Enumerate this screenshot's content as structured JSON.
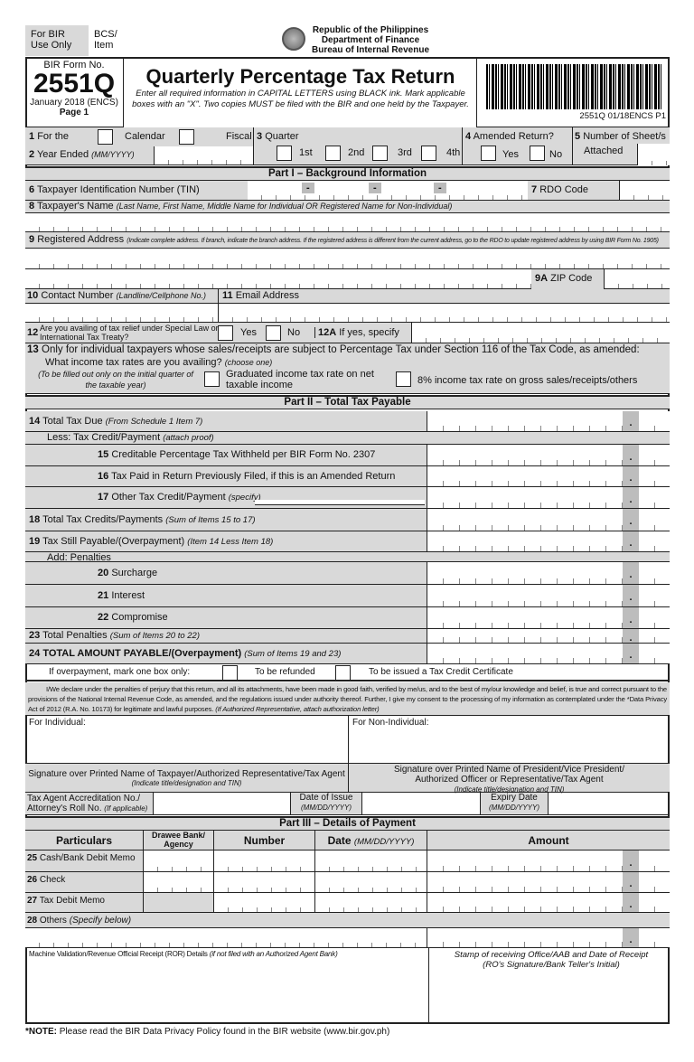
{
  "header": {
    "bir_use": "For BIR Use Only",
    "bcs": "BCS/ Item",
    "agency1": "Republic of the Philippines",
    "agency2": "Department of Finance",
    "agency3": "Bureau of Internal Revenue"
  },
  "form": {
    "form_no_label": "BIR Form No.",
    "form_no": "2551Q",
    "edition": "January 2018 (ENCS)",
    "page": "Page 1",
    "title": "Quarterly Percentage Tax Return",
    "instructions": "Enter all required information in CAPITAL LETTERS using BLACK ink. Mark applicable boxes with an \"X\".  Two copies MUST be filed with the BIR and one held by the Taxpayer.",
    "barcode_code": "2551Q 01/18ENCS P1"
  },
  "items": {
    "i1": "For the",
    "calendar": "Calendar",
    "fiscal": "Fiscal",
    "i2": "Year Ended",
    "i2_hint": "(MM/YYYY)",
    "i3": "Quarter",
    "q": [
      "1st",
      "2nd",
      "3rd",
      "4th"
    ],
    "i4": "Amended Return?",
    "yes": "Yes",
    "no": "No",
    "i5": "Number of Sheet/s",
    "attached": "Attached"
  },
  "part1": {
    "title": "Part I – Background Information",
    "i6": "Taxpayer Identification Number (TIN)",
    "i7": "RDO Code",
    "i8": "Taxpayer's Name",
    "i8_hint": "(Last Name, First Name, Middle Name for Individual OR Registered Name for Non-Individual)",
    "i9": "Registered Address",
    "i9_hint": "(Indicate complete address. If branch, indicate the branch address. If the registered address is different from the current address, go to the RDO to update registered address by using BIR Form No. 1905)",
    "i9a": "ZIP Code",
    "i10": "Contact Number",
    "i10_hint": "(Landline/Cellphone No.)",
    "i11": "Email Address",
    "i12": "Are you availing of tax relief under Special Law or International Tax Treaty?",
    "yes": "Yes",
    "no": "No",
    "i12a": "If yes, specify",
    "i13": "Only for individual taxpayers whose sales/receipts are subject to Percentage Tax under Section 116 of the Tax Code, as amended:",
    "i13_q": "What income tax rates are you availing?",
    "i13_choose": "(choose one)",
    "i13_note": "(To be filled out only on the initial quarter of the taxable year)",
    "i13_opt1": "Graduated income tax rate on net taxable income",
    "i13_opt2": "8% income tax rate on gross sales/receipts/others"
  },
  "part2": {
    "title": "Part II – Total Tax Payable",
    "rows": [
      {
        "n": "14",
        "label": "Total Tax Due",
        "hint": "(From Schedule 1 Item 7)"
      },
      {
        "n": "",
        "label": "Less: Tax Credit/Payment",
        "hint": "(attach proof)"
      },
      {
        "n": "15",
        "label": "Creditable Percentage Tax Withheld per BIR Form No. 2307",
        "hint": ""
      },
      {
        "n": "16",
        "label": "Tax Paid in Return Previously Filed, if this is an Amended Return",
        "hint": ""
      },
      {
        "n": "17",
        "label": "Other Tax Credit/Payment",
        "hint": "(specify)"
      },
      {
        "n": "18",
        "label": "Total Tax Credits/Payments",
        "hint": "(Sum of Items 15 to 17)"
      },
      {
        "n": "19",
        "label": "Tax Still Payable/(Overpayment)",
        "hint": "(Item 14 Less Item 18)"
      },
      {
        "n": "",
        "label": "Add: Penalties",
        "hint": ""
      },
      {
        "n": "20",
        "label": "Surcharge",
        "hint": ""
      },
      {
        "n": "21",
        "label": "Interest",
        "hint": ""
      },
      {
        "n": "22",
        "label": "Compromise",
        "hint": ""
      },
      {
        "n": "23",
        "label": "Total Penalties",
        "hint": "(Sum of Items 20 to 22)"
      },
      {
        "n": "24",
        "label": "TOTAL AMOUNT PAYABLE/(Overpayment)",
        "hint": "(Sum of Items 19 and 23)"
      }
    ],
    "overpay": "If overpayment, mark one box only:",
    "refund": "To be refunded",
    "tcc": "To be issued a Tax Credit Certificate"
  },
  "declaration": {
    "text": "I/We declare under the penalties of perjury that this return, and all its attachments, have been made in good faith, verified by me/us, and to the best of my/our knowledge and belief, is true and correct pursuant to the provisions of the National Internal Revenue Code, as amended, and the regulations issued under authority thereof. Further, I give my consent to the processing of my information as contemplated under the *Data Privacy Act of 2012 (R.A. No. 10173) for legitimate and lawful purposes.",
    "note": "(If Authorized Representative, attach authorization letter)",
    "individual": "For Individual:",
    "nonindividual": "For Non-Individual:",
    "sig1": "Signature over Printed Name of Taxpayer/Authorized Representative/Tax Agent",
    "sig1_hint": "(Indicate title/designation and TIN)",
    "sig2": "Signature over Printed Name of President/Vice President/ Authorized Officer or Representative/Tax Agent",
    "sig2_hint": "(Indicate title/designation and TIN)",
    "agent": "Tax Agent Accreditation No./ Attorney's Roll No.",
    "agent_hint": "(If applicable)",
    "issue": "Date of Issue",
    "expiry": "Expiry Date",
    "date_hint": "(MM/DD/YYYY)"
  },
  "part3": {
    "title": "Part III – Details  of Payment",
    "cols": [
      "Particulars",
      "Drawee Bank/ Agency",
      "Number",
      "Date",
      "Amount"
    ],
    "date_hint": "(MM/DD/YYYY)",
    "rows": [
      {
        "n": "25",
        "label": "Cash/Bank Debit Memo"
      },
      {
        "n": "26",
        "label": "Check"
      },
      {
        "n": "27",
        "label": "Tax Debit Memo"
      },
      {
        "n": "28",
        "label": "Others",
        "hint": "(Specify below)"
      }
    ],
    "machine": "Machine Validation/Revenue Official Receipt (ROR) Details",
    "machine_hint": "(if not filed with an Authorized Agent Bank)",
    "stamp": "Stamp of receiving Office/AAB and Date of Receipt (RO's Signature/Bank Teller's Initial)"
  },
  "footer": {
    "note_label": "*NOTE:",
    "note": "Please read the BIR Data Privacy Policy found in the BIR website (www.bir.gov.ph)"
  }
}
